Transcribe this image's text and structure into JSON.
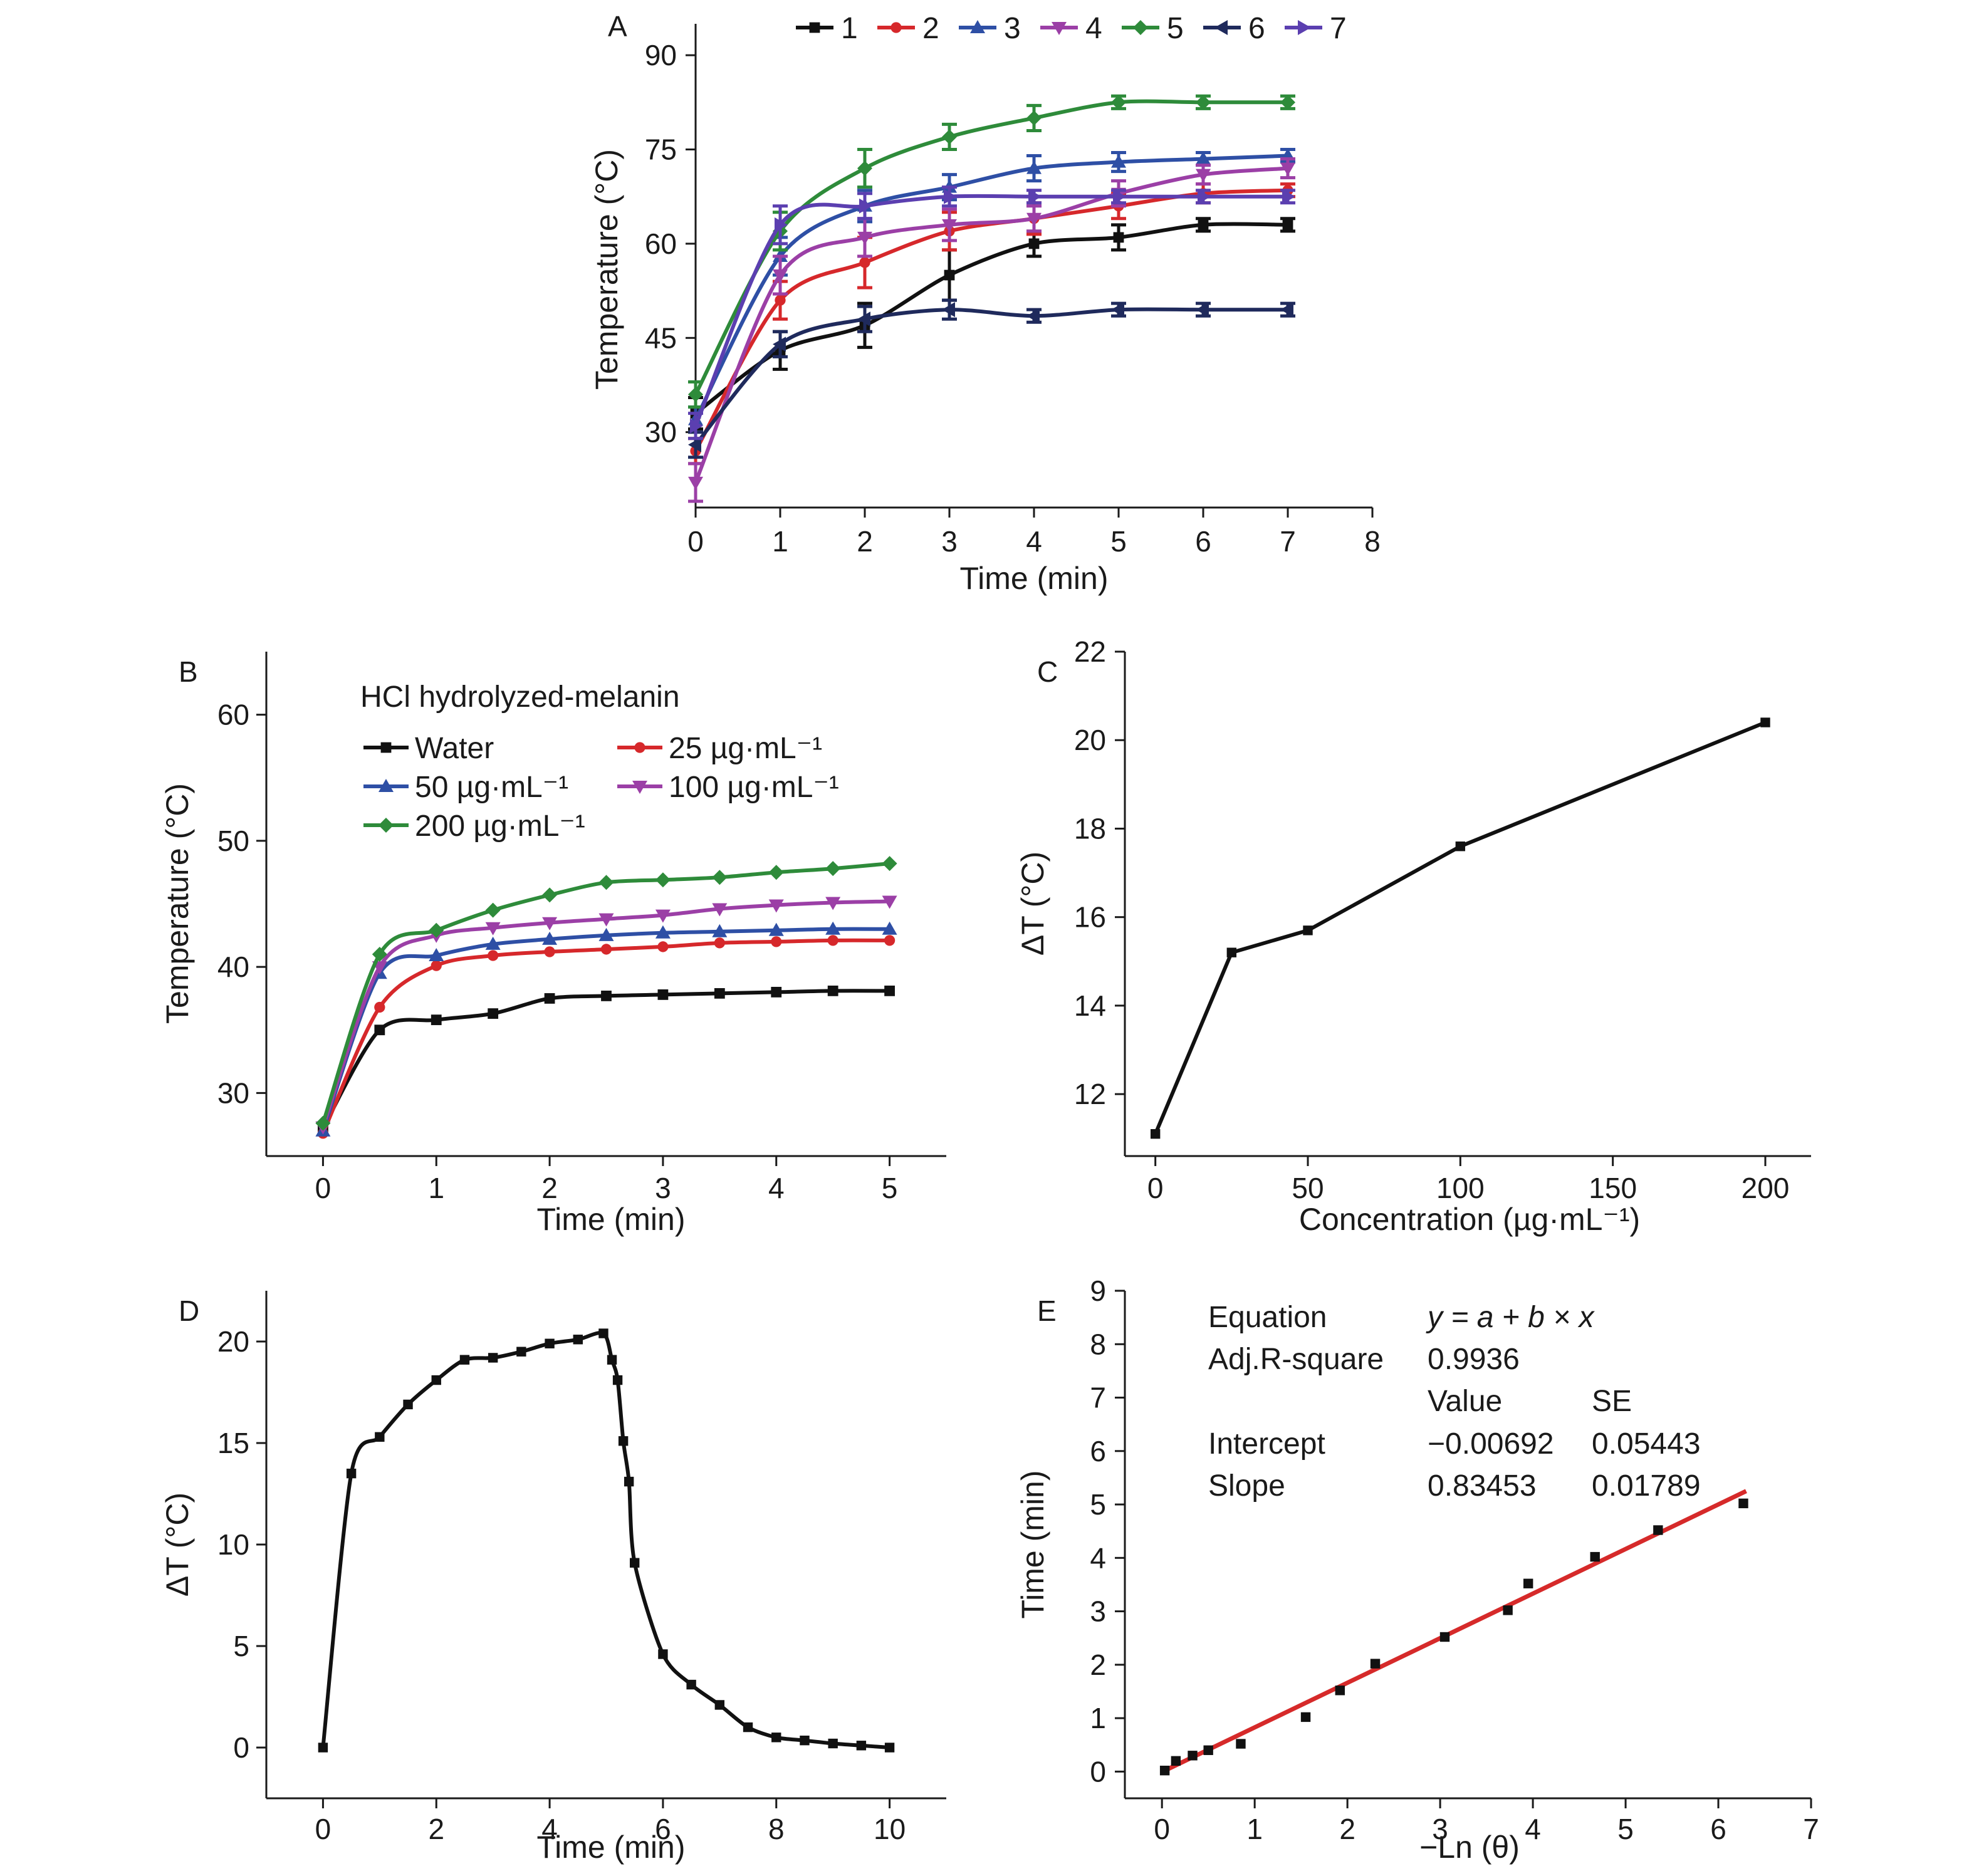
{
  "colors": {
    "s1": "#111111",
    "s2": "#d6282b",
    "s3": "#2e4fa5",
    "s4": "#9b3fa6",
    "s5": "#2e8b3a",
    "s6": "#1f2a5c",
    "s7": "#5b3fb0",
    "black": "#111111",
    "fit": "#d62a2a"
  },
  "chart_data": [
    {
      "panel": "A",
      "type": "line",
      "xlabel": "Time (min)",
      "ylabel": "Temperature (°C)",
      "xlim": [
        0,
        8
      ],
      "ylim": [
        18,
        95
      ],
      "xticks": [
        0,
        1,
        2,
        3,
        4,
        5,
        6,
        7,
        8
      ],
      "yticks": [
        30,
        45,
        60,
        75,
        90
      ],
      "legend": "top",
      "x": [
        0,
        1,
        2,
        3,
        4,
        5,
        6,
        7
      ],
      "series": [
        {
          "name": "1",
          "color_key": "s1",
          "marker": "square",
          "values": [
            33,
            43,
            47,
            55,
            60,
            61,
            63,
            63
          ],
          "errors": [
            2.5,
            3,
            3.5,
            4,
            2,
            2,
            1,
            1
          ]
        },
        {
          "name": "2",
          "color_key": "s2",
          "marker": "circle",
          "values": [
            27,
            51,
            57,
            62,
            64,
            66,
            68,
            68.5
          ],
          "errors": [
            2,
            3,
            4,
            3,
            2.5,
            2,
            1.5,
            1
          ]
        },
        {
          "name": "3",
          "color_key": "s3",
          "marker": "triangle-up",
          "values": [
            32,
            58,
            66,
            69,
            72,
            73,
            73.5,
            74
          ],
          "errors": [
            2,
            3,
            2.5,
            2,
            2,
            1.5,
            1,
            1
          ]
        },
        {
          "name": "4",
          "color_key": "s4",
          "marker": "triangle-down",
          "values": [
            22,
            55,
            61,
            63,
            64,
            68,
            71,
            72
          ],
          "errors": [
            3,
            3,
            3,
            2.5,
            2,
            2,
            1.5,
            1.5
          ]
        },
        {
          "name": "5",
          "color_key": "s5",
          "marker": "diamond",
          "values": [
            36,
            62,
            72,
            77,
            80,
            82.5,
            82.5,
            82.5
          ],
          "errors": [
            2,
            3,
            3,
            2,
            2,
            1,
            1,
            1
          ]
        },
        {
          "name": "6",
          "color_key": "s6",
          "marker": "triangle-left",
          "values": [
            28,
            44,
            48,
            49.5,
            48.5,
            49.5,
            49.5,
            49.5
          ],
          "errors": [
            2,
            2,
            2,
            1.5,
            1,
            1,
            1,
            1
          ]
        },
        {
          "name": "7",
          "color_key": "s7",
          "marker": "triangle-right",
          "values": [
            31,
            63,
            66,
            67.5,
            67.5,
            67.5,
            67.5,
            67.5
          ],
          "errors": [
            2,
            3,
            2,
            1.5,
            1,
            1,
            1,
            1
          ]
        }
      ]
    },
    {
      "panel": "B",
      "type": "line",
      "title": "HCl hydrolyzed-melanin",
      "xlabel": "Time (min)",
      "ylabel": "Temperature (°C)",
      "xlim": [
        -0.5,
        5.5
      ],
      "ylim": [
        25,
        65
      ],
      "xticks": [
        0,
        1,
        2,
        3,
        4,
        5
      ],
      "yticks": [
        30,
        40,
        50,
        60
      ],
      "legend": "top-left",
      "x": [
        0,
        0.5,
        1,
        1.5,
        2,
        2.5,
        3,
        3.5,
        4,
        4.5,
        5
      ],
      "series": [
        {
          "name": "Water",
          "color_key": "s1",
          "marker": "square",
          "values": [
            27.2,
            35,
            35.8,
            36.3,
            37.5,
            37.7,
            37.8,
            37.9,
            38,
            38.1,
            38.1
          ]
        },
        {
          "name": "25 µg·mL⁻¹",
          "color_key": "s2",
          "marker": "circle",
          "values": [
            26.8,
            36.8,
            40.1,
            40.9,
            41.2,
            41.4,
            41.6,
            41.9,
            42,
            42.1,
            42.1
          ]
        },
        {
          "name": "50 µg·mL⁻¹",
          "color_key": "s3",
          "marker": "triangle-up",
          "values": [
            27,
            39.5,
            40.9,
            41.8,
            42.2,
            42.5,
            42.7,
            42.8,
            42.9,
            43,
            43
          ]
        },
        {
          "name": "100 µg·mL⁻¹",
          "color_key": "s4",
          "marker": "triangle-down",
          "values": [
            27.3,
            40,
            42.5,
            43.1,
            43.5,
            43.8,
            44.1,
            44.6,
            44.9,
            45.1,
            45.2
          ]
        },
        {
          "name": "200 µg·mL⁻¹",
          "color_key": "s5",
          "marker": "diamond",
          "values": [
            27.6,
            41,
            42.9,
            44.5,
            45.7,
            46.7,
            46.9,
            47.1,
            47.5,
            47.8,
            48.2
          ]
        }
      ]
    },
    {
      "panel": "C",
      "type": "line",
      "xlabel": "Concentration (µg·mL⁻¹)",
      "ylabel": "ΔT (°C)",
      "xlim": [
        -10,
        215
      ],
      "ylim": [
        10.6,
        22
      ],
      "xticks": [
        0,
        50,
        100,
        150,
        200
      ],
      "yticks": [
        12,
        14,
        16,
        18,
        20,
        22
      ],
      "x": [
        0,
        25,
        50,
        100,
        200
      ],
      "series": [
        {
          "color_key": "black",
          "marker": "square",
          "values": [
            11.1,
            15.2,
            15.7,
            17.6,
            20.4
          ]
        }
      ]
    },
    {
      "panel": "D",
      "type": "line",
      "xlabel": "Time (min)",
      "ylabel": "ΔT (°C)",
      "xlim": [
        -1,
        11
      ],
      "ylim": [
        -2.5,
        22.5
      ],
      "xticks": [
        0,
        2,
        4,
        6,
        8,
        10
      ],
      "yticks": [
        0,
        5,
        10,
        15,
        20
      ],
      "x": [
        0,
        0.5,
        1,
        1.5,
        2,
        2.5,
        3,
        3.5,
        4,
        4.5,
        4.95,
        5.1,
        5.2,
        5.3,
        5.4,
        5.5,
        6,
        6.5,
        7,
        7.5,
        8,
        8.5,
        9,
        9.5,
        10
      ],
      "series": [
        {
          "color_key": "black",
          "marker": "square",
          "values": [
            0,
            13.5,
            15.3,
            16.9,
            18.1,
            19.1,
            19.2,
            19.5,
            19.9,
            20.1,
            20.4,
            19.1,
            18.1,
            15.1,
            13.1,
            9.1,
            4.6,
            3.1,
            2.1,
            1.0,
            0.5,
            0.35,
            0.2,
            0.1,
            0.0
          ]
        }
      ]
    },
    {
      "panel": "E",
      "type": "scatter",
      "xlabel": "−Ln (θ)",
      "ylabel": "Time (min)",
      "xlim": [
        -0.4,
        7
      ],
      "ylim": [
        -0.5,
        9
      ],
      "xticks": [
        0,
        1,
        2,
        3,
        4,
        5,
        6,
        7
      ],
      "yticks": [
        0,
        1,
        2,
        3,
        4,
        5,
        6,
        7,
        8,
        9
      ],
      "x": [
        0.03,
        0.15,
        0.33,
        0.5,
        0.85,
        1.55,
        1.92,
        2.3,
        3.05,
        3.73,
        3.95,
        4.67,
        5.35,
        6.27
      ],
      "series": [
        {
          "color_key": "black",
          "marker": "square",
          "values": [
            0.02,
            0.2,
            0.3,
            0.4,
            0.52,
            1.02,
            1.52,
            2.02,
            2.52,
            3.02,
            3.52,
            4.02,
            4.52,
            5.02
          ]
        }
      ],
      "fit": {
        "color_key": "fit",
        "intercept": -0.00692,
        "slope": 0.83453,
        "x_range": [
          0,
          6.3
        ]
      },
      "stats": {
        "equation_label": "Equation",
        "equation": "y = a + b × x",
        "adjr_label": "Adj.R-square",
        "adjr": "0.9936",
        "value_header": "Value",
        "se_header": "SE",
        "intercept_label": "Intercept",
        "intercept_value": "−0.00692",
        "intercept_se": "0.05443",
        "slope_label": "Slope",
        "slope_value": "0.83453",
        "slope_se": "0.01789"
      }
    }
  ]
}
